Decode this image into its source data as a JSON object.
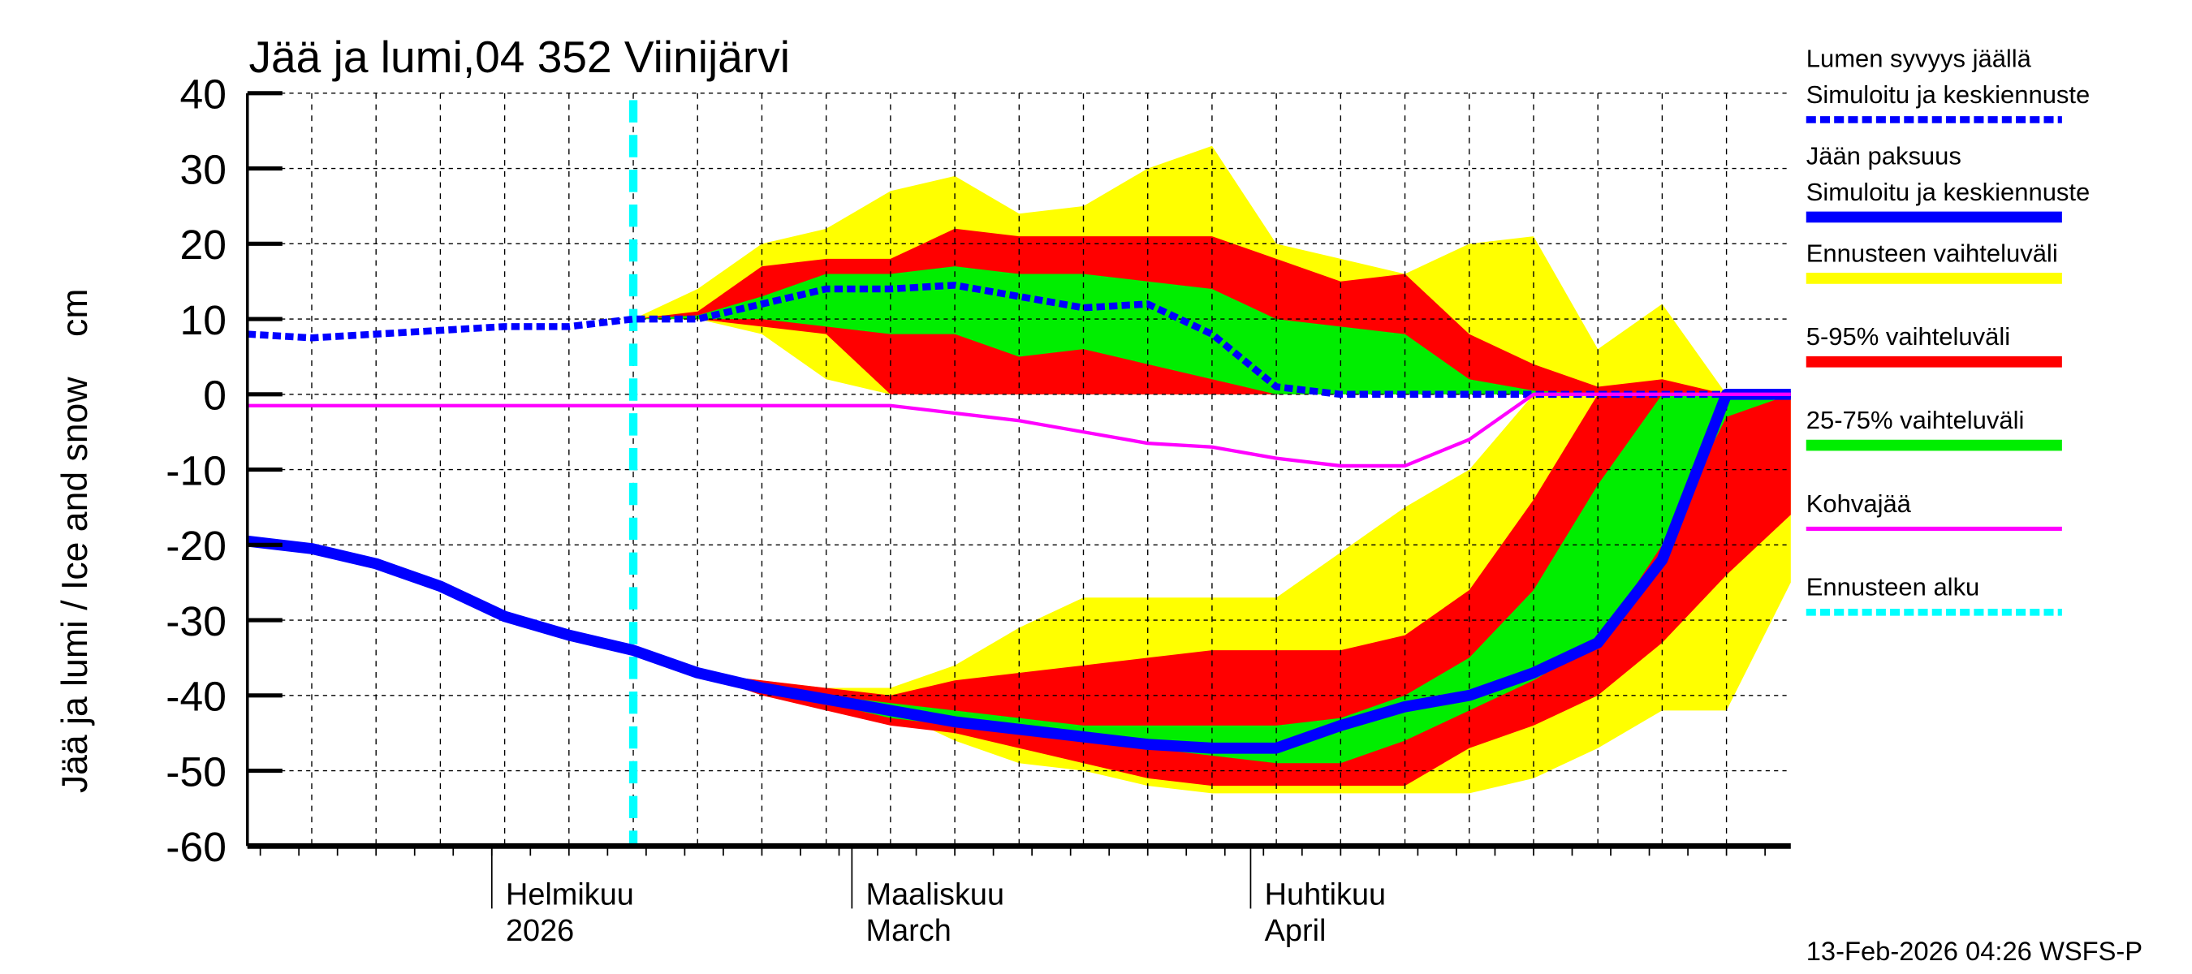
{
  "chart_data": {
    "type": "area",
    "title": "Jää ja lumi,04 352 Viinijärvi",
    "ylabel": "Jää ja lumi / Ice and snow    cm",
    "ylim": [
      -60,
      40
    ],
    "yticks": [
      40,
      30,
      20,
      10,
      0,
      -10,
      -20,
      -30,
      -40,
      -50,
      -60
    ],
    "xlim": [
      "2026-01-13",
      "2026-05-13"
    ],
    "grid": true,
    "legend_placement": "right",
    "x_month_labels": [
      {
        "date": "2026-02-01",
        "line1": "Helmikuu",
        "line2": "2026"
      },
      {
        "date": "2026-03-01",
        "line1": "Maaliskuu",
        "line2": "March"
      },
      {
        "date": "2026-04-01",
        "line1": "Huhtikuu",
        "line2": "April"
      }
    ],
    "forecast_start": "2026-02-12",
    "timestamp": "13-Feb-2026 04:26 WSFS-P",
    "dates": [
      "2026-01-13",
      "2026-01-18",
      "2026-01-23",
      "2026-01-28",
      "2026-02-02",
      "2026-02-07",
      "2026-02-12",
      "2026-02-17",
      "2026-02-22",
      "2026-02-27",
      "2026-03-04",
      "2026-03-09",
      "2026-03-14",
      "2026-03-19",
      "2026-03-24",
      "2026-03-29",
      "2026-04-03",
      "2026-04-08",
      "2026-04-13",
      "2026-04-18",
      "2026-04-23",
      "2026-04-28",
      "2026-05-03",
      "2026-05-08",
      "2026-05-13"
    ],
    "series": [
      {
        "name": "Lumen syvyys jäällä Simuloitu ja keskiennuste",
        "color": "#0000ff",
        "style": "dashed",
        "values": [
          8,
          7.5,
          8,
          8.5,
          9,
          9,
          10,
          10,
          12,
          14,
          14,
          14.5,
          13,
          11.5,
          12,
          8,
          1,
          0,
          0,
          0,
          0,
          0,
          0,
          0,
          0
        ]
      },
      {
        "name": "Jään paksuus Simuloitu ja keskiennuste",
        "color": "#0000ff",
        "style": "solid-thick",
        "values": [
          -19.5,
          -20.5,
          -22.5,
          -25.5,
          -29.5,
          -32,
          -34,
          -37,
          -39,
          -40.5,
          -42,
          -43.5,
          -44.5,
          -45.5,
          -46.5,
          -47,
          -47,
          -44,
          -41.5,
          -40,
          -37,
          -33,
          -22,
          0,
          0
        ]
      },
      {
        "name": "Kohvajää",
        "color": "#ff00ff",
        "style": "solid",
        "values": [
          -1.5,
          -1.5,
          -1.5,
          -1.5,
          -1.5,
          -1.5,
          -1.5,
          -1.5,
          -1.5,
          -1.5,
          -1.5,
          -2.5,
          -3.5,
          -5,
          -6.5,
          -7,
          -8.5,
          -9.5,
          -9.5,
          -6,
          0,
          0,
          0,
          0,
          0
        ]
      }
    ],
    "bands": [
      {
        "name": "Ennusteen vaihteluväli",
        "color": "#ffff00",
        "snow_hi": [
          10,
          14,
          20,
          22,
          27,
          29,
          24,
          25,
          30,
          33,
          20,
          18,
          16,
          20,
          21,
          6,
          12,
          0,
          0
        ],
        "snow_lo": [
          10,
          10,
          8,
          2,
          0,
          0,
          0,
          0,
          0,
          0,
          0,
          0,
          0,
          0,
          0,
          0,
          0,
          0,
          0
        ],
        "ice_hi": [
          -34,
          -37,
          -38,
          -39,
          -39,
          -36,
          -31,
          -27,
          -27,
          -27,
          -27,
          -21,
          -15,
          -10,
          0,
          0,
          0,
          0,
          0
        ],
        "ice_lo": [
          -34,
          -37,
          -39,
          -41,
          -42,
          -46,
          -49,
          -50,
          -52,
          -53,
          -53,
          -53,
          -53,
          -53,
          -51,
          -47,
          -42,
          -42,
          -25
        ]
      },
      {
        "name": "5-95% vaihteluväli",
        "color": "#ff0000",
        "snow_hi": [
          10,
          11,
          17,
          18,
          18,
          22,
          21,
          21,
          21,
          21,
          18,
          15,
          16,
          8,
          4,
          1,
          2,
          0,
          0
        ],
        "snow_lo": [
          10,
          10,
          9,
          8,
          0,
          0,
          0,
          0,
          0,
          0,
          0,
          0,
          0,
          0,
          0,
          0,
          0,
          0,
          0
        ],
        "ice_hi": [
          -34,
          -37,
          -38,
          -39,
          -40,
          -38,
          -37,
          -36,
          -35,
          -34,
          -34,
          -34,
          -32,
          -26,
          -14,
          0,
          0,
          0,
          0
        ],
        "ice_lo": [
          -34,
          -37,
          -40,
          -42,
          -44,
          -45,
          -47,
          -49,
          -51,
          -52,
          -52,
          -52,
          -52,
          -47,
          -44,
          -40,
          -33,
          -24,
          -16
        ]
      },
      {
        "name": "25-75% vaihteluväli",
        "color": "#00ee00",
        "snow_hi": [
          10,
          10.5,
          13,
          16,
          16,
          17,
          16,
          16,
          15,
          14,
          10,
          9,
          8,
          2,
          0.5,
          0,
          0,
          0,
          0
        ],
        "snow_lo": [
          10,
          10,
          10,
          9,
          8,
          8,
          5,
          6,
          4,
          2,
          0,
          0,
          0,
          0,
          0,
          0,
          0,
          0,
          0
        ],
        "ice_hi": [
          -34,
          -37,
          -38.5,
          -40,
          -41,
          -42,
          -43,
          -44,
          -44,
          -44,
          -44,
          -43,
          -40,
          -35,
          -26,
          -12,
          0,
          0,
          0
        ],
        "ice_lo": [
          -34,
          -37,
          -39.5,
          -41,
          -43,
          -44,
          -45,
          -46,
          -47,
          -48,
          -49,
          -49,
          -46,
          -42,
          -38,
          -33,
          -20,
          -3,
          0
        ]
      }
    ],
    "legend": [
      {
        "line1": "Lumen syvyys jäällä",
        "line2": "Simuloitu ja keskiennuste",
        "color": "#0000ff",
        "style": "dashed"
      },
      {
        "line1": "Jään paksuus",
        "line2": "Simuloitu ja keskiennuste",
        "color": "#0000ff",
        "style": "solid-thick"
      },
      {
        "line1": "Ennusteen vaihteluväli",
        "color": "#ffff00",
        "style": "band"
      },
      {
        "line1": "5-95% vaihteluväli",
        "color": "#ff0000",
        "style": "band"
      },
      {
        "line1": "25-75% vaihteluväli",
        "color": "#00ee00",
        "style": "band"
      },
      {
        "line1": "Kohvajää",
        "color": "#ff00ff",
        "style": "solid"
      },
      {
        "line1": "Ennusteen alku",
        "color": "#00ffff",
        "style": "dashed"
      }
    ]
  }
}
